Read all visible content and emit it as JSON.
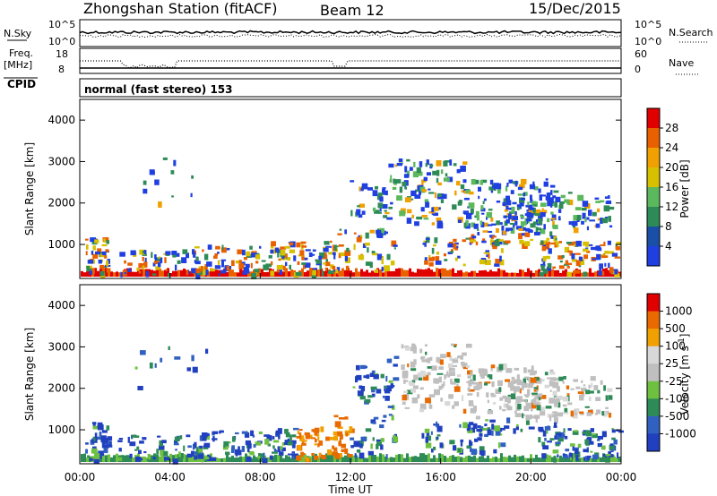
{
  "header": {
    "station": "Zhongshan Station (fitACF)",
    "beam": "Beam 12",
    "date": "15/Dec/2015"
  },
  "panels": {
    "top_left_1": "N.Sky",
    "top_left_2a": "Freq.",
    "top_left_2b": "[MHz]",
    "cpid_label": "CPID",
    "cpid_text": "normal (fast stereo) 153",
    "right_1": "N.Search",
    "right_2": "Nave",
    "nsky_ticks": [
      "10^5",
      "10^0"
    ],
    "nsky_right_ticks": [
      "10^5",
      "10^0"
    ],
    "freq_ticks": [
      "18",
      "8"
    ],
    "nave_ticks": [
      "60",
      "0"
    ]
  },
  "colors": {
    "power": [
      "#1f3fe0",
      "#1a4fa8",
      "#2e8b57",
      "#5cb85c",
      "#d6c000",
      "#f0a000",
      "#e86000",
      "#e00000"
    ],
    "velocity": [
      "#2040c0",
      "#3060c0",
      "#2e8b57",
      "#6ec040",
      "#bfbfbf",
      "#d8d8d8",
      "#f0a000",
      "#e86a00",
      "#e00000"
    ]
  },
  "chart_data": [
    {
      "type": "heatmap",
      "name": "power",
      "xlabel": "Time UT",
      "ylabel": "Slant Range [km]",
      "ylim": [
        180,
        4500
      ],
      "x_ticks": [
        "00:00",
        "04:00",
        "08:00",
        "12:00",
        "16:00",
        "20:00",
        "00:00"
      ],
      "y_ticks": [
        1000,
        2000,
        3000,
        4000
      ],
      "colorbar_label": "Power [dB]",
      "colorbar_ticks": [
        "28",
        "24",
        "20",
        "16",
        "12",
        "8",
        "4"
      ]
    },
    {
      "type": "heatmap",
      "name": "velocity",
      "xlabel": "Time UT",
      "ylabel": "Slant Range [km]",
      "ylim": [
        180,
        4500
      ],
      "x_ticks": [
        "00:00",
        "04:00",
        "08:00",
        "12:00",
        "16:00",
        "20:00",
        "00:00"
      ],
      "y_ticks": [
        1000,
        2000,
        3000,
        4000
      ],
      "colorbar_label": "Velocity [m s^-1]",
      "colorbar_ticks": [
        "1000",
        "500",
        "100",
        "25",
        "-25",
        "-100",
        "-500",
        "-1000"
      ]
    }
  ]
}
